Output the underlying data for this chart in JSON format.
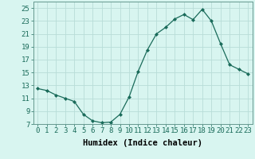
{
  "x": [
    0,
    1,
    2,
    3,
    4,
    5,
    6,
    7,
    8,
    9,
    10,
    11,
    12,
    13,
    14,
    15,
    16,
    17,
    18,
    19,
    20,
    21,
    22,
    23
  ],
  "y": [
    12.5,
    12.2,
    11.5,
    11.0,
    10.5,
    8.5,
    7.5,
    7.2,
    7.3,
    8.5,
    11.2,
    15.2,
    18.5,
    21.0,
    22.0,
    23.3,
    24.0,
    23.2,
    24.8,
    23.0,
    19.5,
    16.2,
    15.5,
    14.8
  ],
  "line_color": "#1a6b5a",
  "marker": "D",
  "marker_size": 2.0,
  "bg_color": "#d8f5f0",
  "grid_color": "#b8ddd8",
  "xlabel": "Humidex (Indice chaleur)",
  "ylim": [
    7,
    26
  ],
  "yticks": [
    7,
    9,
    11,
    13,
    15,
    17,
    19,
    21,
    23,
    25
  ],
  "xticks": [
    0,
    1,
    2,
    3,
    4,
    5,
    6,
    7,
    8,
    9,
    10,
    11,
    12,
    13,
    14,
    15,
    16,
    17,
    18,
    19,
    20,
    21,
    22,
    23
  ],
  "xlabel_fontsize": 7.5,
  "tick_fontsize": 6.5
}
